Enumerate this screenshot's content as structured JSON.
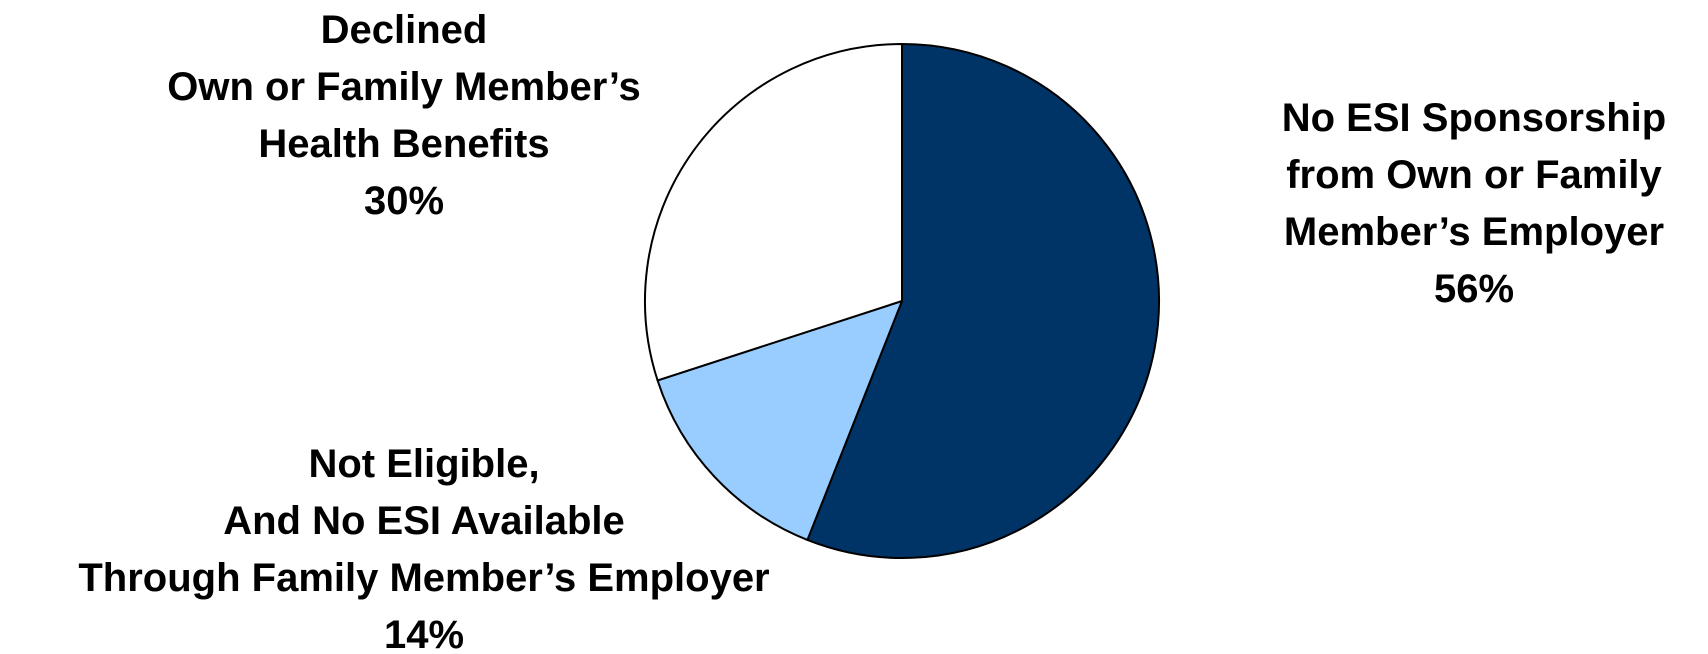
{
  "chart_data": {
    "type": "pie",
    "start_angle_deg": 0,
    "direction": "clockwise",
    "slices": [
      {
        "label_lines": [
          "No ESI Sponsorship",
          "from Own or Family",
          "Member’s Employer"
        ],
        "value_label": "56%",
        "value": 56,
        "color": "#003366"
      },
      {
        "label_lines": [
          "Not Eligible,",
          "And No ESI Available",
          "Through Family Member’s Employer"
        ],
        "value_label": "14%",
        "value": 14,
        "color": "#99CCFF"
      },
      {
        "label_lines": [
          "Declined",
          "Own or Family Member’s",
          "Health Benefits"
        ],
        "value_label": "30%",
        "value": 30,
        "color": "#FFFFFF"
      }
    ],
    "outline_color": "#000000",
    "legend": "none"
  }
}
